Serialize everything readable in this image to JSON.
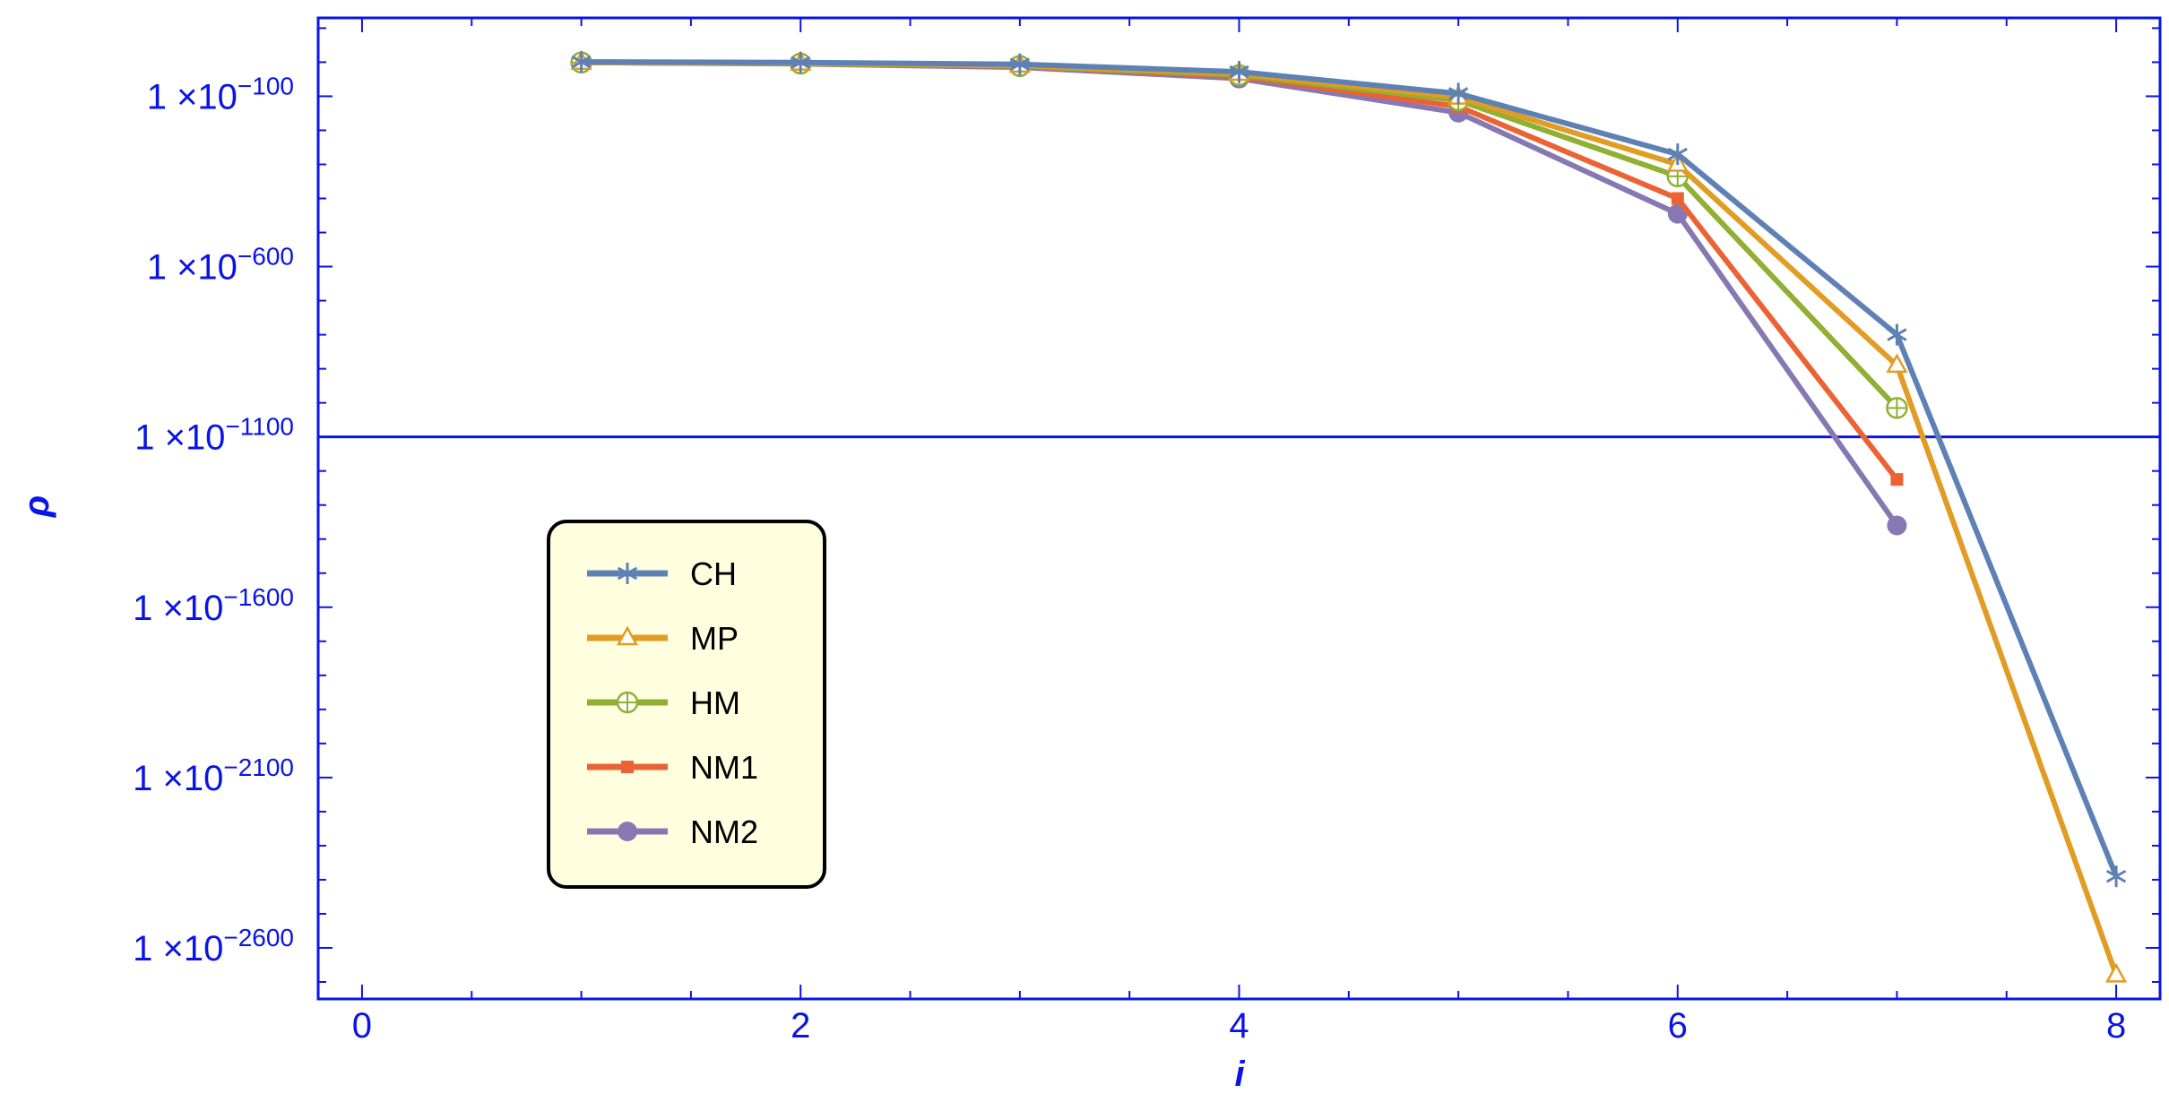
{
  "chart_data": {
    "type": "line",
    "title": "",
    "xlabel": "i",
    "ylabel": "ρ",
    "x_scale": "linear",
    "y_scale": "log",
    "xlim": [
      -0.2,
      8.2
    ],
    "ylim": [
      -2750,
      130
    ],
    "x_ticks": [
      0,
      2,
      4,
      6,
      8
    ],
    "y_ticks": [
      {
        "exponent": -100,
        "mantissa": "1",
        "times": "×10",
        "sup": "−100"
      },
      {
        "exponent": -600,
        "mantissa": "1",
        "times": "×10",
        "sup": "−600"
      },
      {
        "exponent": -1100,
        "mantissa": "1",
        "times": "×10",
        "sup": "−1100"
      },
      {
        "exponent": -1600,
        "mantissa": "1",
        "times": "×10",
        "sup": "−1600"
      },
      {
        "exponent": -2100,
        "mantissa": "1",
        "times": "×10",
        "sup": "−2100"
      },
      {
        "exponent": -2600,
        "mantissa": "1",
        "times": "×10",
        "sup": "−2600"
      }
    ],
    "value_note": "y values are base-10 exponents of rho",
    "reference_line_exponent": -1100,
    "grid": false,
    "legend_position": "left-middle",
    "series": [
      {
        "name": "CH",
        "color": "#5e81b5",
        "marker": "star",
        "x": [
          1,
          2,
          3,
          4,
          5,
          6,
          7,
          8
        ],
        "y_exponent": [
          1,
          -1,
          -6,
          -28,
          -92,
          -270,
          -800,
          -2390
        ]
      },
      {
        "name": "MP",
        "color": "#e19c24",
        "marker": "triangle",
        "x": [
          1,
          2,
          3,
          4,
          5,
          6,
          7,
          8
        ],
        "y_exponent": [
          -1,
          -3,
          -9,
          -33,
          -103,
          -300,
          -890,
          -2680
        ]
      },
      {
        "name": "HM",
        "color": "#8fb032",
        "marker": "circle-plus",
        "x": [
          1,
          2,
          3,
          4,
          5,
          6,
          7
        ],
        "y_exponent": [
          -1,
          -4,
          -11,
          -38,
          -112,
          -335,
          -1015
        ]
      },
      {
        "name": "NM1",
        "color": "#eb6235",
        "marker": "square",
        "x": [
          1,
          2,
          3,
          4,
          5,
          6,
          7
        ],
        "y_exponent": [
          -1,
          -4,
          -12,
          -42,
          -130,
          -400,
          -1225
        ]
      },
      {
        "name": "NM2",
        "color": "#8778b3",
        "marker": "disc",
        "x": [
          1,
          2,
          3,
          4,
          5,
          6,
          7
        ],
        "y_exponent": [
          -1,
          -5,
          -15,
          -48,
          -148,
          -445,
          -1360
        ]
      }
    ]
  }
}
